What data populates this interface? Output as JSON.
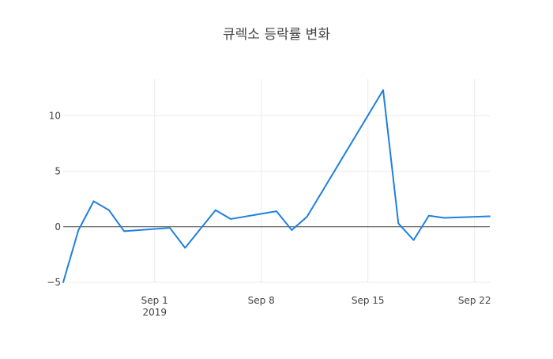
{
  "chart_data": {
    "type": "line",
    "title": "큐렉소 등락률 변화",
    "xlabel": "",
    "ylabel": "",
    "x_range": [
      "2019-08-26",
      "2019-09-23"
    ],
    "ylim": [
      -5,
      13.3
    ],
    "grid": true,
    "y_ticks": [
      -5,
      0,
      5,
      10
    ],
    "y_tick_labels": [
      "−5",
      "0",
      "5",
      "10"
    ],
    "x_ticks": [
      {
        "date": "2019-09-01",
        "label": "Sep 1",
        "sublabel": "2019"
      },
      {
        "date": "2019-09-08",
        "label": "Sep 8",
        "sublabel": ""
      },
      {
        "date": "2019-09-15",
        "label": "Sep 15",
        "sublabel": ""
      },
      {
        "date": "2019-09-22",
        "label": "Sep 22",
        "sublabel": ""
      }
    ],
    "series": [
      {
        "color": "#1f7fe0",
        "x": [
          "2019-08-26",
          "2019-08-27",
          "2019-08-28",
          "2019-08-29",
          "2019-08-30",
          "2019-09-02",
          "2019-09-03",
          "2019-09-05",
          "2019-09-06",
          "2019-09-09",
          "2019-09-10",
          "2019-09-11",
          "2019-09-16",
          "2019-09-17",
          "2019-09-18",
          "2019-09-19",
          "2019-09-20",
          "2019-09-23"
        ],
        "y": [
          -5.0,
          -0.3,
          2.3,
          1.5,
          -0.4,
          -0.1,
          -1.9,
          1.5,
          0.7,
          1.4,
          -0.3,
          0.9,
          12.3,
          0.3,
          -1.2,
          1.0,
          0.8,
          0.95
        ]
      }
    ]
  }
}
